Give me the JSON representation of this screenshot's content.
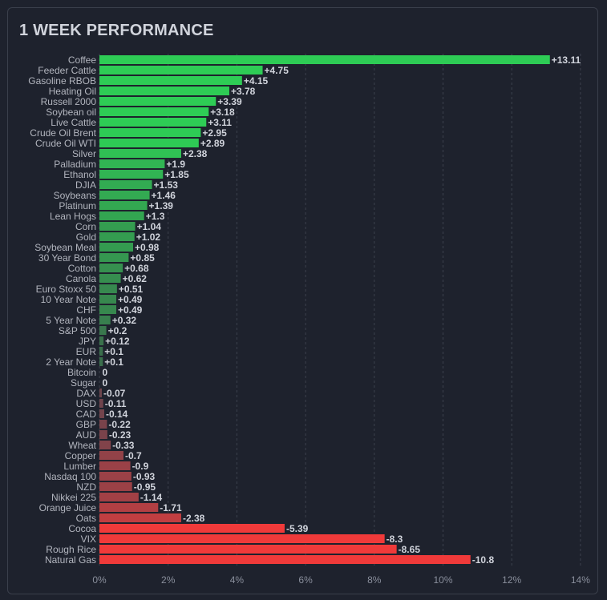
{
  "title": "1 WEEK PERFORMANCE",
  "colors": {
    "background": "#1e222d",
    "positive_max": "#2ecc55",
    "positive_min": "#3d5a4a",
    "negative_min": "#5a4650",
    "negative_max": "#f03a3a",
    "grid": "#3c414d"
  },
  "chart_data": {
    "type": "bar",
    "orientation": "horizontal",
    "title": "1 WEEK PERFORMANCE",
    "xlabel": "",
    "ylabel": "",
    "xlim": [
      0,
      14
    ],
    "x_ticks": [
      "0%",
      "2%",
      "4%",
      "6%",
      "8%",
      "10%",
      "12%",
      "14%"
    ],
    "grid": "vertical dashed",
    "bars_from_zero": "absolute value",
    "categories": [
      "Coffee",
      "Feeder Cattle",
      "Gasoline RBOB",
      "Heating Oil",
      "Russell 2000",
      "Soybean oil",
      "Live Cattle",
      "Crude Oil Brent",
      "Crude Oil WTI",
      "Silver",
      "Palladium",
      "Ethanol",
      "DJIA",
      "Soybeans",
      "Platinum",
      "Lean Hogs",
      "Corn",
      "Gold",
      "Soybean Meal",
      "30 Year Bond",
      "Cotton",
      "Canola",
      "Euro Stoxx 50",
      "10 Year Note",
      "CHF",
      "5 Year Note",
      "S&P 500",
      "JPY",
      "EUR",
      "2 Year Note",
      "Bitcoin",
      "Sugar",
      "DAX",
      "USD",
      "CAD",
      "GBP",
      "AUD",
      "Wheat",
      "Copper",
      "Lumber",
      "Nasdaq 100",
      "NZD",
      "Nikkei 225",
      "Orange Juice",
      "Oats",
      "Cocoa",
      "VIX",
      "Rough Rice",
      "Natural Gas"
    ],
    "values": [
      13.11,
      4.75,
      4.15,
      3.78,
      3.39,
      3.18,
      3.11,
      2.95,
      2.89,
      2.38,
      1.9,
      1.85,
      1.53,
      1.46,
      1.39,
      1.3,
      1.04,
      1.02,
      0.98,
      0.85,
      0.68,
      0.62,
      0.51,
      0.49,
      0.49,
      0.32,
      0.2,
      0.12,
      0.1,
      0.1,
      0,
      0,
      -0.07,
      -0.11,
      -0.14,
      -0.22,
      -0.23,
      -0.33,
      -0.7,
      -0.9,
      -0.93,
      -0.95,
      -1.14,
      -1.71,
      -2.38,
      -5.39,
      -8.3,
      -8.65,
      -10.8
    ],
    "value_labels": [
      "+13.11",
      "+4.75",
      "+4.15",
      "+3.78",
      "+3.39",
      "+3.18",
      "+3.11",
      "+2.95",
      "+2.89",
      "+2.38",
      "+1.9",
      "+1.85",
      "+1.53",
      "+1.46",
      "+1.39",
      "+1.3",
      "+1.04",
      "+1.02",
      "+0.98",
      "+0.85",
      "+0.68",
      "+0.62",
      "+0.51",
      "+0.49",
      "+0.49",
      "+0.32",
      "+0.2",
      "+0.12",
      "+0.1",
      "+0.1",
      "0",
      "0",
      "-0.07",
      "-0.11",
      "-0.14",
      "-0.22",
      "-0.23",
      "-0.33",
      "-0.7",
      "-0.9",
      "-0.93",
      "-0.95",
      "-1.14",
      "-1.71",
      "-2.38",
      "-5.39",
      "-8.3",
      "-8.65",
      "-10.8"
    ]
  }
}
